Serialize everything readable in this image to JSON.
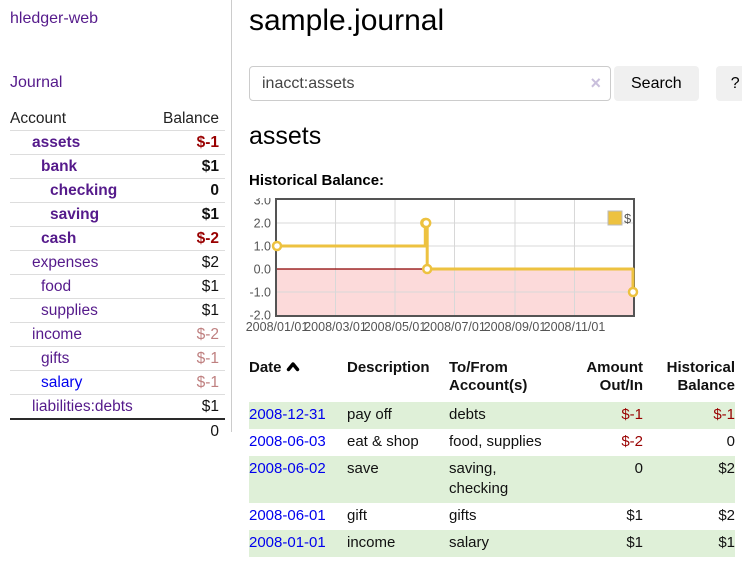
{
  "sidebar": {
    "app_title": "hledger-web",
    "nav": {
      "journal": "Journal"
    },
    "accounts": {
      "header": {
        "account": "Account",
        "balance": "Balance"
      },
      "rows": [
        {
          "name": "assets",
          "balance": "$-1",
          "depth": 1,
          "matched": true,
          "balance_style": "neg"
        },
        {
          "name": "bank",
          "balance": "$1",
          "depth": 2,
          "matched": true,
          "balance_style": "pos"
        },
        {
          "name": "checking",
          "balance": "0",
          "depth": 3,
          "matched": true,
          "balance_style": "pos"
        },
        {
          "name": "saving",
          "balance": "$1",
          "depth": 3,
          "matched": true,
          "balance_style": "pos"
        },
        {
          "name": "cash",
          "balance": "$-2",
          "depth": 2,
          "matched": true,
          "balance_style": "neg"
        },
        {
          "name": "expenses",
          "balance": "$2",
          "depth": 1,
          "matched": false,
          "balance_style": "pos"
        },
        {
          "name": "food",
          "balance": "$1",
          "depth": 2,
          "matched": false,
          "balance_style": "pos"
        },
        {
          "name": "supplies",
          "balance": "$1",
          "depth": 2,
          "matched": false,
          "balance_style": "pos"
        },
        {
          "name": "income",
          "balance": "$-2",
          "depth": 1,
          "matched": false,
          "balance_style": "neg-weak"
        },
        {
          "name": "gifts",
          "balance": "$-1",
          "depth": 2,
          "matched": false,
          "balance_style": "neg-weak"
        },
        {
          "name": "salary",
          "balance": "$-1",
          "depth": 2,
          "matched": false,
          "balance_style": "neg-weak",
          "link_style": "unvisited"
        },
        {
          "name": "liabilities:debts",
          "balance": "$1",
          "depth": 1,
          "matched": false,
          "balance_style": "pos"
        }
      ],
      "total": "0"
    }
  },
  "main": {
    "title": "sample.journal",
    "search": {
      "value": "inacct:assets",
      "clear_label": "×",
      "button": "Search",
      "help_button": "?"
    },
    "heading": "assets",
    "chart_label": "Historical Balance:",
    "register": {
      "headers": {
        "date": "Date",
        "description": "Description",
        "tofrom1": "To/From",
        "tofrom2": "Account(s)",
        "amount1": "Amount",
        "amount2": "Out/In",
        "balance1": "Historical",
        "balance2": "Balance"
      },
      "rows": [
        {
          "date": "2008-12-31",
          "description": "pay off",
          "accounts": "debts",
          "amount": "$-1",
          "amount_neg": true,
          "balance": "$-1",
          "balance_neg": true
        },
        {
          "date": "2008-06-03",
          "description": "eat & shop",
          "accounts": "food, supplies",
          "amount": "$-2",
          "amount_neg": true,
          "balance": "0",
          "balance_neg": false
        },
        {
          "date": "2008-06-02",
          "description": "save",
          "accounts": "saving, checking",
          "amount": "0",
          "amount_neg": false,
          "balance": "$2",
          "balance_neg": false
        },
        {
          "date": "2008-06-01",
          "description": "gift",
          "accounts": "gifts",
          "amount": "$1",
          "amount_neg": false,
          "balance": "$2",
          "balance_neg": false
        },
        {
          "date": "2008-01-01",
          "description": "income",
          "accounts": "salary",
          "amount": "$1",
          "amount_neg": false,
          "balance": "$1",
          "balance_neg": false
        }
      ]
    }
  },
  "chart_data": {
    "type": "line",
    "title": "Historical Balance:",
    "series": [
      {
        "name": "$",
        "step": true,
        "color": "#edc240",
        "points": [
          [
            "2008-01-01",
            1
          ],
          [
            "2008-06-01",
            2
          ],
          [
            "2008-06-02",
            2
          ],
          [
            "2008-06-03",
            0
          ],
          [
            "2008-12-31",
            -1
          ]
        ]
      }
    ],
    "x_ticks": [
      "2008/01/01",
      "2008/03/01",
      "2008/05/01",
      "2008/07/01",
      "2008/09/01",
      "2008/11/01"
    ],
    "y_ticks": [
      "3.0",
      "2.0",
      "1.0",
      "0.0",
      "-1.0",
      "-2.0"
    ],
    "xlim": [
      "2008-01-01",
      "2008-12-31"
    ],
    "ylim": [
      -2,
      3
    ],
    "grid": true,
    "legend": "$",
    "legend_position": "top-right",
    "negative_region_fill": "#fcdada",
    "zero_line_color": "#8b0000",
    "grid_color": "#d8d8d8",
    "border_color": "#545454",
    "tick_label_color": "#545454"
  },
  "colors": {
    "link_purple": "#551a8b",
    "link_blue": "#0000ee",
    "negative_strong": "#990000",
    "negative_weak": "#bf8080",
    "row_green": "#dff0d8",
    "chart_line": "#edc240"
  }
}
